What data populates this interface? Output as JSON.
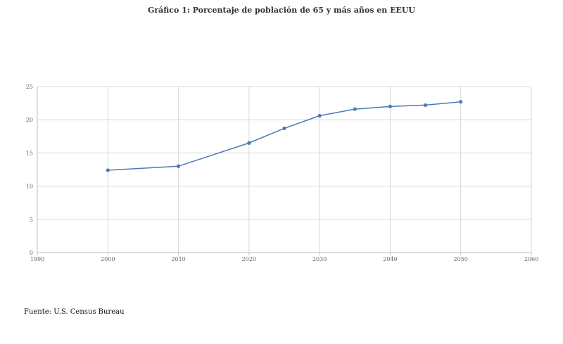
{
  "chart_data": {
    "type": "line",
    "title": "Gráfico 1: Porcentaje de población de 65 y más años en EEUU",
    "source": "Fuente: U.S. Census Bureau",
    "xlim": [
      1990,
      2060
    ],
    "ylim": [
      0,
      25
    ],
    "x_ticks": [
      "1990",
      "2000",
      "2010",
      "2020",
      "2030",
      "2040",
      "2050",
      "2060"
    ],
    "y_ticks": [
      "0",
      "5",
      "10",
      "15",
      "20",
      "25"
    ],
    "grid": true,
    "legend": "none",
    "series": [
      {
        "color": "#4a7ab5",
        "x": [
          2000,
          2010,
          2020,
          2025,
          2030,
          2035,
          2040,
          2045,
          2050
        ],
        "y": [
          12.4,
          13.0,
          16.5,
          18.7,
          20.6,
          21.6,
          22.0,
          22.2,
          22.7
        ]
      }
    ]
  }
}
